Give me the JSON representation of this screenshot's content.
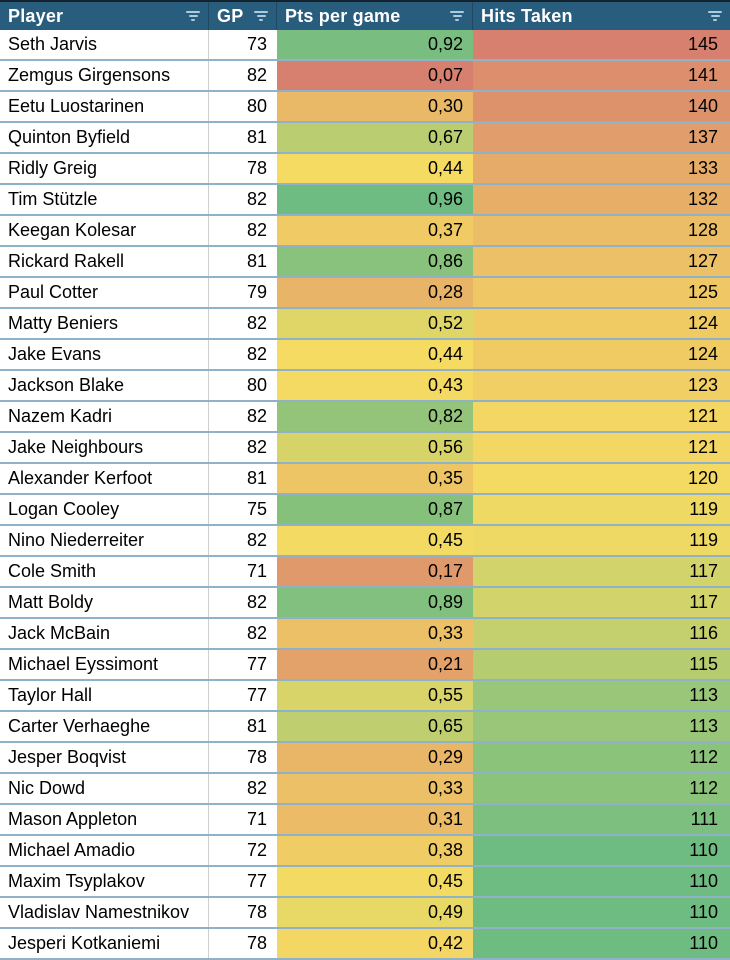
{
  "table": {
    "columns": [
      {
        "key": "player",
        "label": "Player"
      },
      {
        "key": "gp",
        "label": "GP"
      },
      {
        "key": "pts",
        "label": "Pts per game"
      },
      {
        "key": "hits",
        "label": "Hits Taken"
      }
    ],
    "rows": [
      {
        "player": "Seth Jarvis",
        "gp": "73",
        "pts": "0,92",
        "hits": "145"
      },
      {
        "player": "Zemgus Girgensons",
        "gp": "82",
        "pts": "0,07",
        "hits": "141"
      },
      {
        "player": "Eetu Luostarinen",
        "gp": "80",
        "pts": "0,30",
        "hits": "140"
      },
      {
        "player": "Quinton Byfield",
        "gp": "81",
        "pts": "0,67",
        "hits": "137"
      },
      {
        "player": "Ridly Greig",
        "gp": "78",
        "pts": "0,44",
        "hits": "133"
      },
      {
        "player": "Tim Stützle",
        "gp": "82",
        "pts": "0,96",
        "hits": "132"
      },
      {
        "player": "Keegan Kolesar",
        "gp": "82",
        "pts": "0,37",
        "hits": "128"
      },
      {
        "player": "Rickard Rakell",
        "gp": "81",
        "pts": "0,86",
        "hits": "127"
      },
      {
        "player": "Paul Cotter",
        "gp": "79",
        "pts": "0,28",
        "hits": "125"
      },
      {
        "player": "Matty Beniers",
        "gp": "82",
        "pts": "0,52",
        "hits": "124"
      },
      {
        "player": "Jake Evans",
        "gp": "82",
        "pts": "0,44",
        "hits": "124"
      },
      {
        "player": "Jackson Blake",
        "gp": "80",
        "pts": "0,43",
        "hits": "123"
      },
      {
        "player": "Nazem Kadri",
        "gp": "82",
        "pts": "0,82",
        "hits": "121"
      },
      {
        "player": "Jake Neighbours",
        "gp": "82",
        "pts": "0,56",
        "hits": "121"
      },
      {
        "player": "Alexander Kerfoot",
        "gp": "81",
        "pts": "0,35",
        "hits": "120"
      },
      {
        "player": "Logan Cooley",
        "gp": "75",
        "pts": "0,87",
        "hits": "119"
      },
      {
        "player": "Nino Niederreiter",
        "gp": "82",
        "pts": "0,45",
        "hits": "119"
      },
      {
        "player": "Cole Smith",
        "gp": "71",
        "pts": "0,17",
        "hits": "117"
      },
      {
        "player": "Matt Boldy",
        "gp": "82",
        "pts": "0,89",
        "hits": "117"
      },
      {
        "player": "Jack McBain",
        "gp": "82",
        "pts": "0,33",
        "hits": "116"
      },
      {
        "player": "Michael Eyssimont",
        "gp": "77",
        "pts": "0,21",
        "hits": "115"
      },
      {
        "player": "Taylor Hall",
        "gp": "77",
        "pts": "0,55",
        "hits": "113"
      },
      {
        "player": "Carter Verhaeghe",
        "gp": "81",
        "pts": "0,65",
        "hits": "113"
      },
      {
        "player": "Jesper Boqvist",
        "gp": "78",
        "pts": "0,29",
        "hits": "112"
      },
      {
        "player": "Nic Dowd",
        "gp": "82",
        "pts": "0,33",
        "hits": "112"
      },
      {
        "player": "Mason Appleton",
        "gp": "71",
        "pts": "0,31",
        "hits": "111"
      },
      {
        "player": "Michael Amadio",
        "gp": "72",
        "pts": "0,38",
        "hits": "110"
      },
      {
        "player": "Maxim Tsyplakov",
        "gp": "77",
        "pts": "0,45",
        "hits": "110"
      },
      {
        "player": "Vladislav Namestnikov",
        "gp": "78",
        "pts": "0,49",
        "hits": "110"
      },
      {
        "player": "Jesperi Kotkaniemi",
        "gp": "78",
        "pts": "0,42",
        "hits": "110"
      }
    ]
  },
  "colors": {
    "header_bg": "#285d7e",
    "header_text": "#ffffff",
    "filter_icon": "#abcbde",
    "row_border": "#8fb2c8",
    "column_border": "#cfcfcf",
    "scale_red": "#d8806f",
    "scale_yellow": "#f5db62",
    "scale_green": "#6fbc82"
  },
  "color_scale": {
    "pts": {
      "min": 0.07,
      "mid": 0.44,
      "max": 0.96,
      "low_color": "scale_red",
      "mid_color": "scale_yellow",
      "high_color": "scale_green"
    },
    "hits": {
      "min": 110,
      "mid": 119.5,
      "max": 145,
      "low_color": "scale_green",
      "mid_color": "scale_yellow",
      "high_color": "scale_red"
    }
  }
}
